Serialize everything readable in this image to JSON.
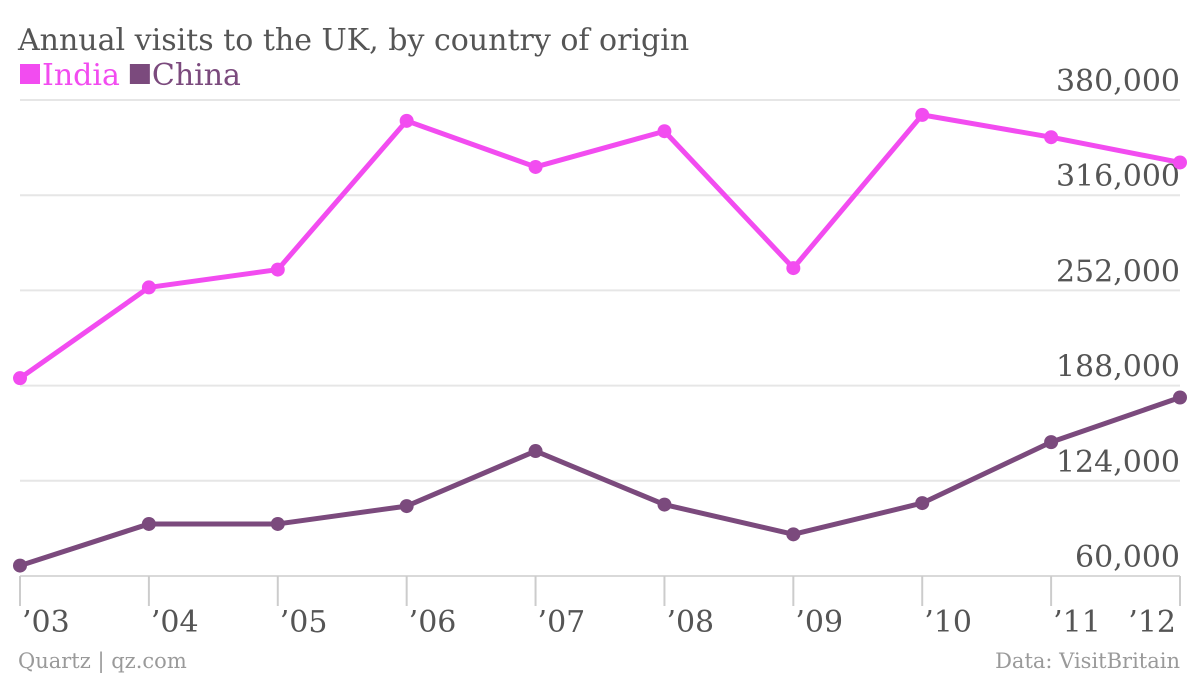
{
  "chart_data": {
    "type": "line",
    "title": "Annual visits to the UK, by country of origin",
    "categories": [
      "’03",
      "’04",
      "’05",
      "’06",
      "’07",
      "’08",
      "’09",
      "’10",
      "’11",
      "’12"
    ],
    "series": [
      {
        "name": "India",
        "color": "#f24cf0",
        "values": [
          193000,
          254000,
          266000,
          366000,
          335000,
          359000,
          267000,
          370000,
          355000,
          338000
        ]
      },
      {
        "name": "China",
        "color": "#7b4a7d",
        "values": [
          67000,
          95000,
          95000,
          107000,
          144000,
          108000,
          88000,
          109000,
          150000,
          180000
        ]
      }
    ],
    "ylim": [
      60000,
      380000
    ],
    "yticks": [
      60000,
      124000,
      188000,
      252000,
      316000,
      380000
    ],
    "ytick_labels": [
      "60,000",
      "124,000",
      "188,000",
      "252,000",
      "316,000",
      "380,000"
    ],
    "grid": true,
    "legend_position": "top-left",
    "y_axis_position": "right"
  },
  "footer": {
    "left": "Quartz | qz.com",
    "right": "Data: VisitBritain"
  }
}
